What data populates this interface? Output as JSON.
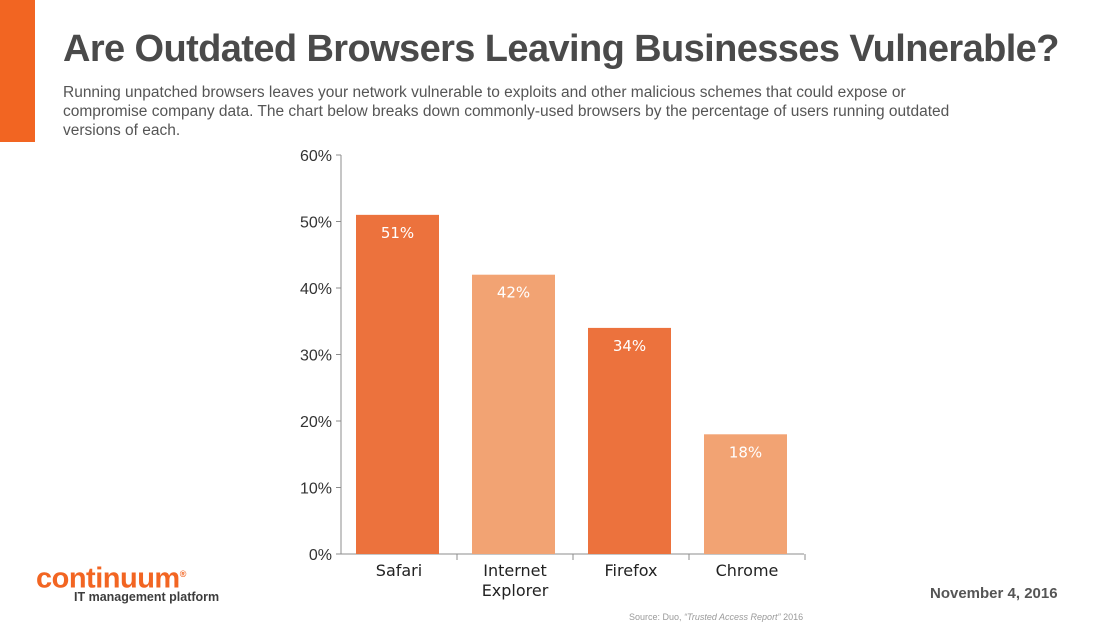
{
  "brand": {
    "accent_color": "#f26522",
    "logo_text": "continuum",
    "logo_mark": "®",
    "tagline": "IT management platform"
  },
  "title": "Are Outdated Browsers Leaving Businesses Vulnerable?",
  "subtitle": "Running unpatched browsers leaves your network vulnerable to exploits and other malicious schemes that could expose or compromise company data. The chart below breaks down commonly-used browsers by the percentage of users running outdated versions of each.",
  "date": "November 4, 2016",
  "source": {
    "prefix": "Source: Duo, ",
    "report": "“Trusted Access Report”",
    "year": " 2016"
  },
  "chart_data": {
    "type": "bar",
    "categories": [
      "Safari",
      "Internet Explorer",
      "Firefox",
      "Chrome"
    ],
    "category_lines": [
      [
        "Safari"
      ],
      [
        "Internet",
        "Explorer"
      ],
      [
        "Firefox"
      ],
      [
        "Chrome"
      ]
    ],
    "values": [
      51,
      42,
      34,
      18
    ],
    "value_labels": [
      "51%",
      "42%",
      "34%",
      "18%"
    ],
    "bar_colors": [
      "#ec723d",
      "#f2a373",
      "#ec723d",
      "#f2a373"
    ],
    "ylim": [
      0,
      60
    ],
    "yticks": [
      0,
      10,
      20,
      30,
      40,
      50,
      60
    ],
    "ytick_labels": [
      "0%",
      "10%",
      "20%",
      "30%",
      "40%",
      "50%",
      "60%"
    ],
    "grid": false,
    "legend": "none"
  }
}
